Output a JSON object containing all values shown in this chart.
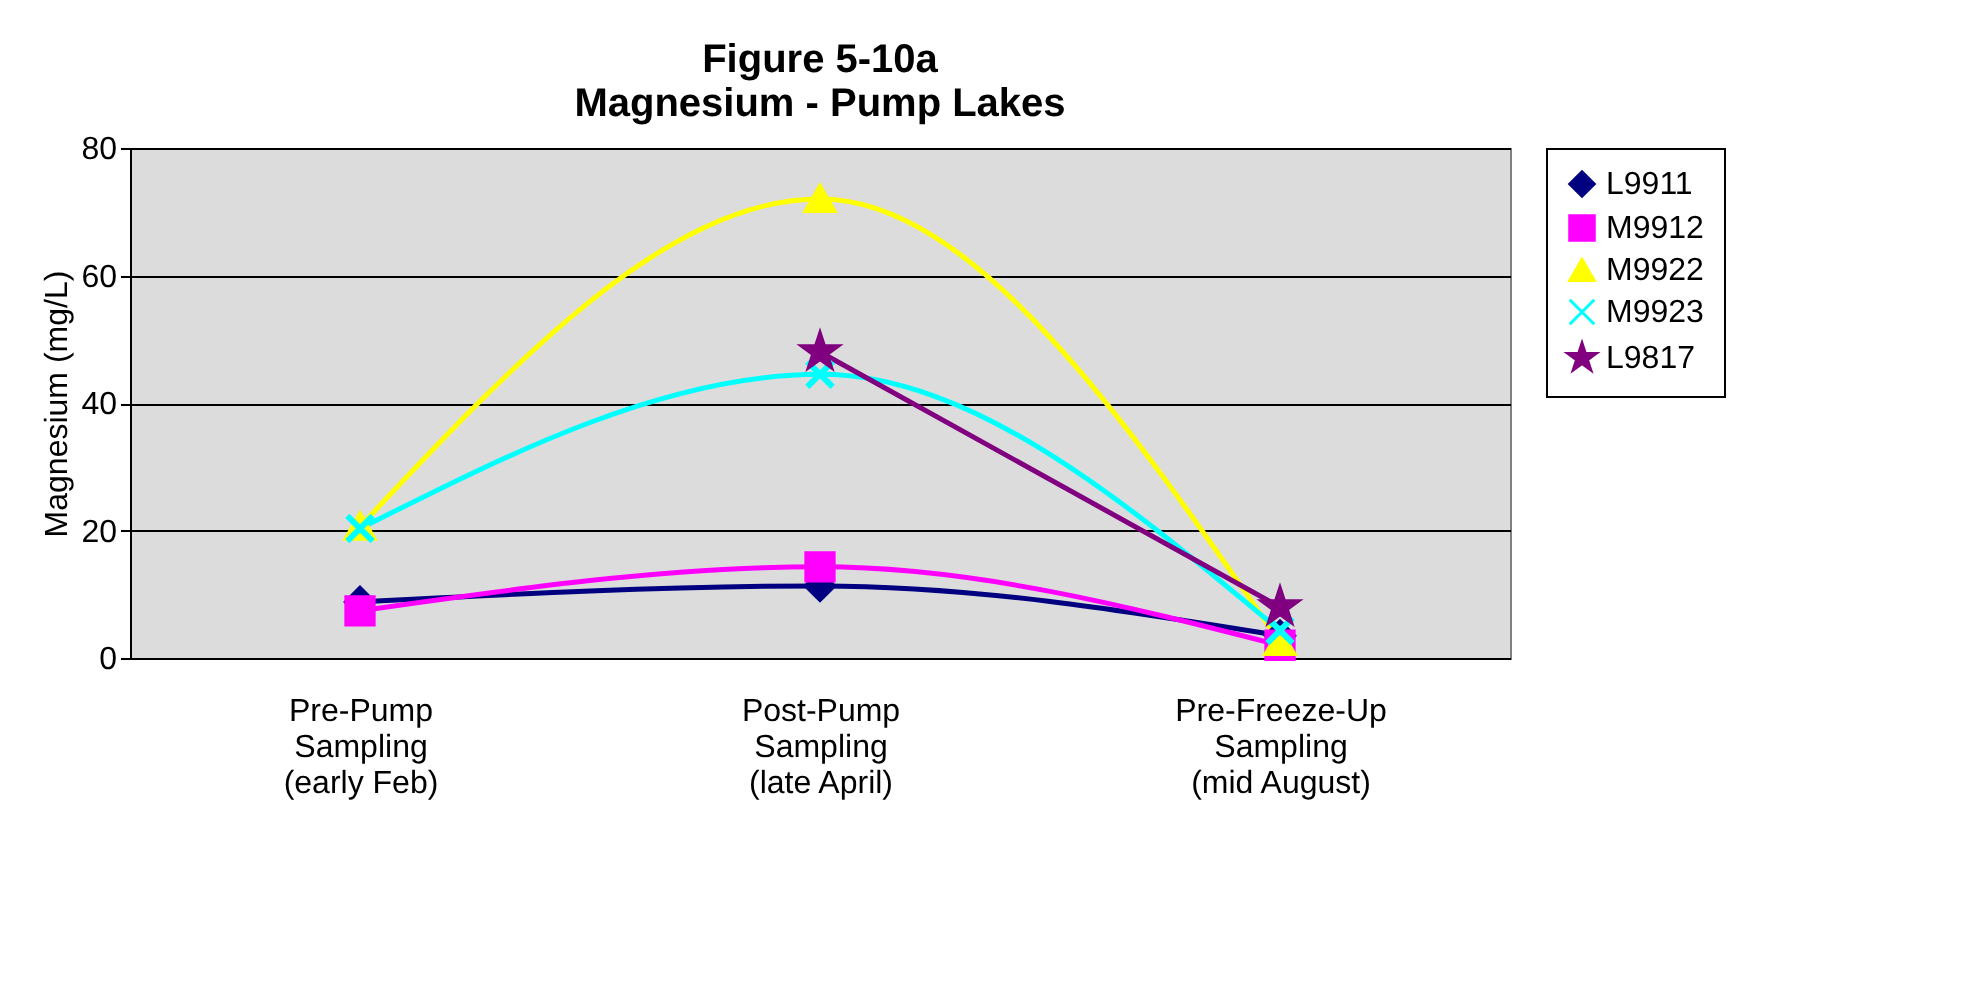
{
  "chart_data": {
    "type": "line",
    "title": "Figure 5-10a\nMagnesium - Pump Lakes",
    "ylabel": "Magnesium (mg/L)",
    "categories": [
      "Pre-Pump\nSampling\n(early Feb)",
      "Post-Pump\nSampling\n(late April)",
      "Pre-Freeze-Up\nSampling\n(mid August)"
    ],
    "series": [
      {
        "name": "L9911",
        "color": "#000080",
        "marker": "diamond",
        "values": [
          8.8,
          11.3,
          3.5
        ]
      },
      {
        "name": "M9912",
        "color": "#ff00ff",
        "marker": "square",
        "values": [
          7.4,
          14.3,
          2
        ]
      },
      {
        "name": "M9922",
        "color": "#ffff00",
        "marker": "triangle",
        "values": [
          20.6,
          72,
          2.5
        ]
      },
      {
        "name": "M9923",
        "color": "#00ffff",
        "marker": "cross",
        "values": [
          20.3,
          44.5,
          4.3
        ]
      },
      {
        "name": "L9817",
        "color": "#800080",
        "marker": "star",
        "values": [
          null,
          48,
          8
        ]
      }
    ],
    "ylim": [
      0,
      80
    ],
    "yticks": [
      0,
      20,
      40,
      60,
      80
    ],
    "grid": "y",
    "legend": "right",
    "line_style": "solid"
  }
}
